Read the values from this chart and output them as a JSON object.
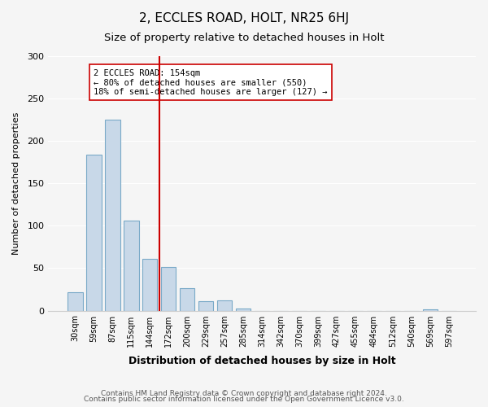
{
  "title": "2, ECCLES ROAD, HOLT, NR25 6HJ",
  "subtitle": "Size of property relative to detached houses in Holt",
  "xlabel": "Distribution of detached houses by size in Holt",
  "ylabel": "Number of detached properties",
  "bar_labels": [
    "30sqm",
    "59sqm",
    "87sqm",
    "115sqm",
    "144sqm",
    "172sqm",
    "200sqm",
    "229sqm",
    "257sqm",
    "285sqm",
    "314sqm",
    "342sqm",
    "370sqm",
    "399sqm",
    "427sqm",
    "455sqm",
    "484sqm",
    "512sqm",
    "540sqm",
    "569sqm",
    "597sqm"
  ],
  "bar_values": [
    22,
    184,
    225,
    106,
    61,
    51,
    26,
    11,
    12,
    2,
    0,
    0,
    0,
    0,
    0,
    0,
    0,
    0,
    0,
    1,
    0
  ],
  "bar_color": "#c8d8e8",
  "bar_edgecolor": "#7aaac8",
  "vline_x": 4.5,
  "vline_color": "#cc0000",
  "annotation_title": "2 ECCLES ROAD: 154sqm",
  "annotation_line1": "← 80% of detached houses are smaller (550)",
  "annotation_line2": "18% of semi-detached houses are larger (127) →",
  "annotation_box_edgecolor": "#cc0000",
  "footnote1": "Contains HM Land Registry data © Crown copyright and database right 2024.",
  "footnote2": "Contains public sector information licensed under the Open Government Licence v3.0.",
  "ylim": [
    0,
    300
  ],
  "yticks": [
    0,
    50,
    100,
    150,
    200,
    250,
    300
  ],
  "background_color": "#f5f5f5",
  "figsize": [
    6.0,
    5.0
  ],
  "dpi": 100
}
